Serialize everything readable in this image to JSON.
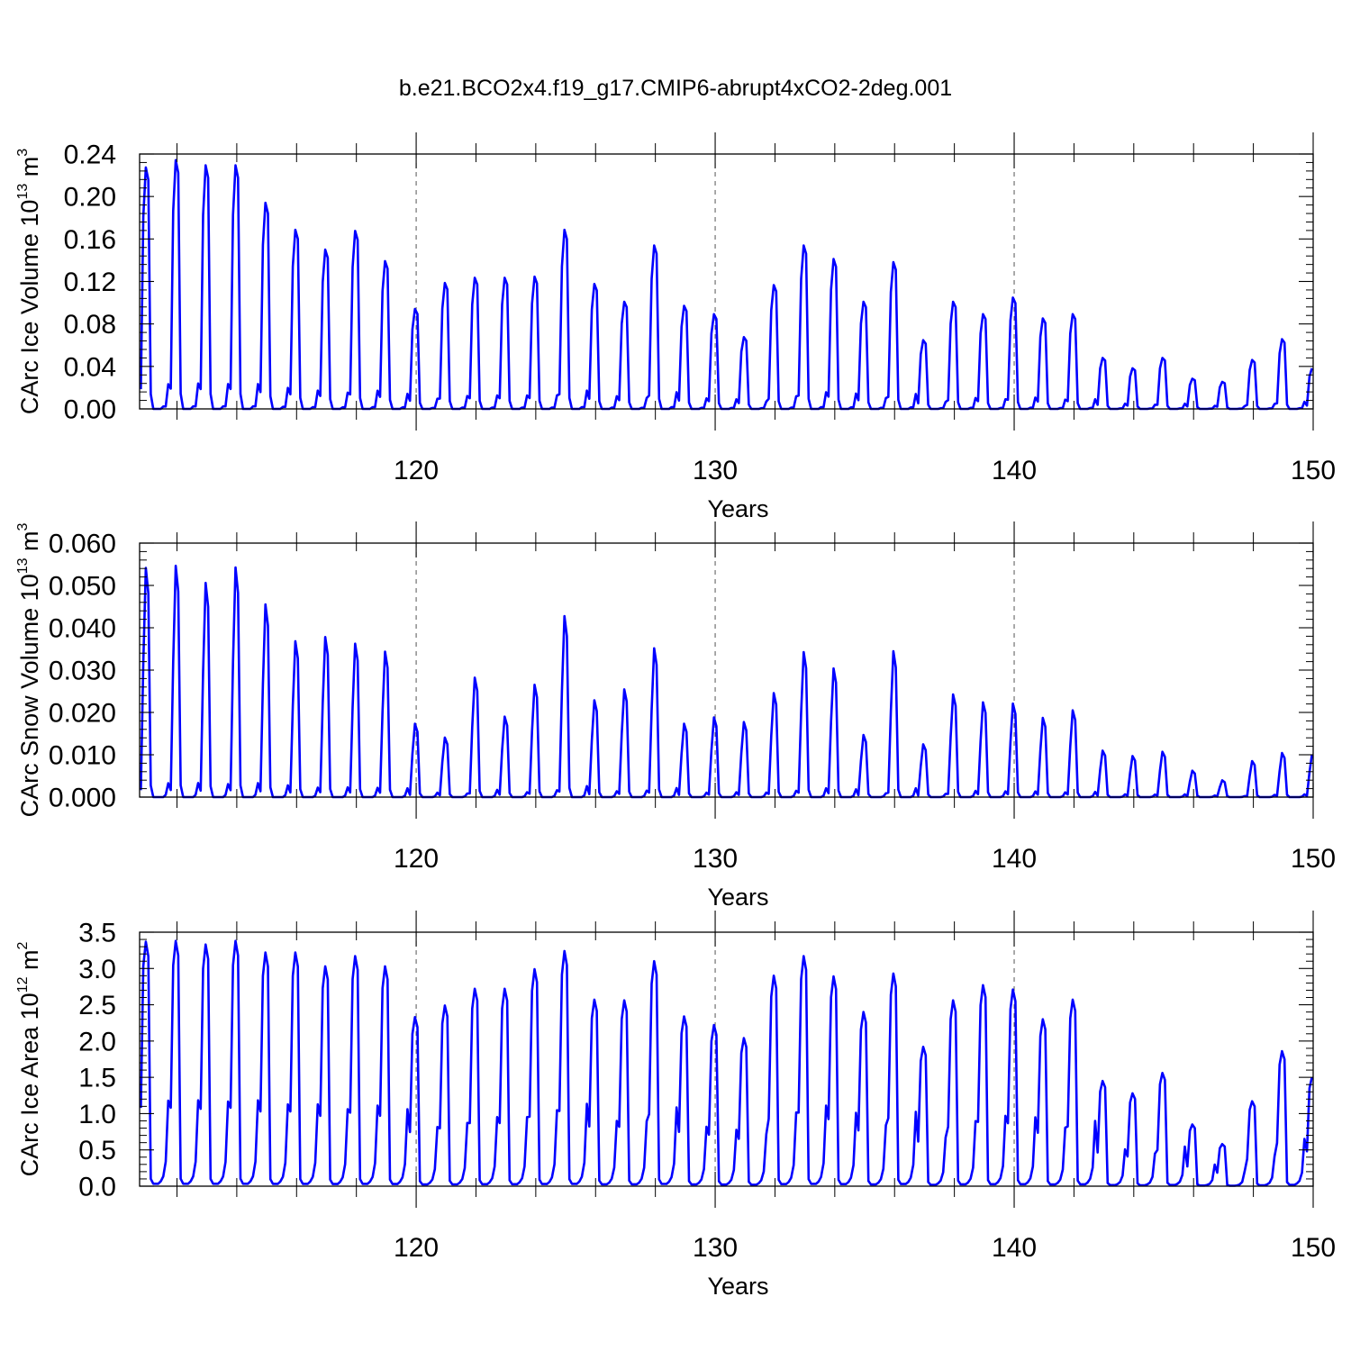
{
  "title": "b.e21.BCO2x4.f19_g17.CMIP6-abrupt4xCO2-2deg.001",
  "colors": {
    "line": "#0000ff",
    "axis": "#000000",
    "grid": "#555555"
  },
  "chart_data": [
    {
      "type": "line",
      "xlabel": "Years",
      "ylabel": {
        "text": "CArc Ice Volume 10",
        "exp": "13",
        "unit": " m",
        "unit_exp": "3"
      },
      "xlim": [
        110.75,
        150
      ],
      "ylim": [
        0,
        0.24
      ],
      "x_ticks": [
        "120",
        "130",
        "140",
        "150"
      ],
      "y_ticks": [
        "0.00",
        "0.04",
        "0.08",
        "0.12",
        "0.16",
        "0.20",
        "0.24"
      ],
      "start_year": 110.75,
      "annual_peaks": [
        0.232,
        0.239,
        0.234,
        0.234,
        0.198,
        0.172,
        0.153,
        0.171,
        0.142,
        0.096,
        0.121,
        0.126,
        0.126,
        0.127,
        0.172,
        0.12,
        0.103,
        0.157,
        0.099,
        0.091,
        0.069,
        0.119,
        0.157,
        0.144,
        0.103,
        0.141,
        0.066,
        0.103,
        0.091,
        0.107,
        0.087,
        0.091,
        0.049,
        0.039,
        0.049,
        0.029,
        0.026,
        0.047,
        0.067,
        0.039
      ]
    },
    {
      "type": "line",
      "xlabel": "Years",
      "ylabel": {
        "text": "CArc Snow Volume 10",
        "exp": "13",
        "unit": " m",
        "unit_exp": "3"
      },
      "xlim": [
        110.75,
        150
      ],
      "ylim": [
        0,
        0.06
      ],
      "x_ticks": [
        "120",
        "130",
        "140",
        "150"
      ],
      "y_ticks": [
        "0.000",
        "0.010",
        "0.020",
        "0.030",
        "0.040",
        "0.050",
        "0.060"
      ],
      "start_year": 110.75,
      "annual_peaks": [
        0.0547,
        0.0552,
        0.0511,
        0.0548,
        0.046,
        0.0372,
        0.0382,
        0.0366,
        0.0347,
        0.0175,
        0.0142,
        0.0285,
        0.0192,
        0.0268,
        0.0432,
        0.0231,
        0.0257,
        0.0355,
        0.0175,
        0.019,
        0.0179,
        0.0248,
        0.0346,
        0.0307,
        0.0148,
        0.0348,
        0.0126,
        0.0245,
        0.0226,
        0.0223,
        0.0189,
        0.0207,
        0.0111,
        0.0098,
        0.0108,
        0.0063,
        0.004,
        0.0086,
        0.0105,
        0.0101
      ]
    },
    {
      "type": "line",
      "xlabel": "Years",
      "ylabel": {
        "text": "CArc Ice Area 10",
        "exp": "12",
        "unit": " m",
        "unit_exp": "2"
      },
      "xlim": [
        110.75,
        150
      ],
      "ylim": [
        0,
        3.5
      ],
      "x_ticks": [
        "120",
        "130",
        "140",
        "150"
      ],
      "y_ticks": [
        "0.0",
        "0.5",
        "1.0",
        "1.5",
        "2.0",
        "2.5",
        "3.0",
        "3.5"
      ],
      "start_year": 110.75,
      "annual_peaks": [
        3.37,
        3.38,
        3.33,
        3.38,
        3.22,
        3.22,
        3.03,
        3.17,
        3.03,
        2.33,
        2.49,
        2.72,
        2.72,
        2.99,
        3.24,
        2.57,
        2.56,
        3.1,
        2.34,
        2.22,
        2.04,
        2.9,
        3.17,
        2.89,
        2.4,
        2.93,
        1.92,
        2.56,
        2.77,
        2.71,
        2.3,
        2.57,
        1.45,
        1.28,
        1.56,
        0.85,
        0.58,
        1.17,
        1.86,
        1.5
      ]
    }
  ]
}
